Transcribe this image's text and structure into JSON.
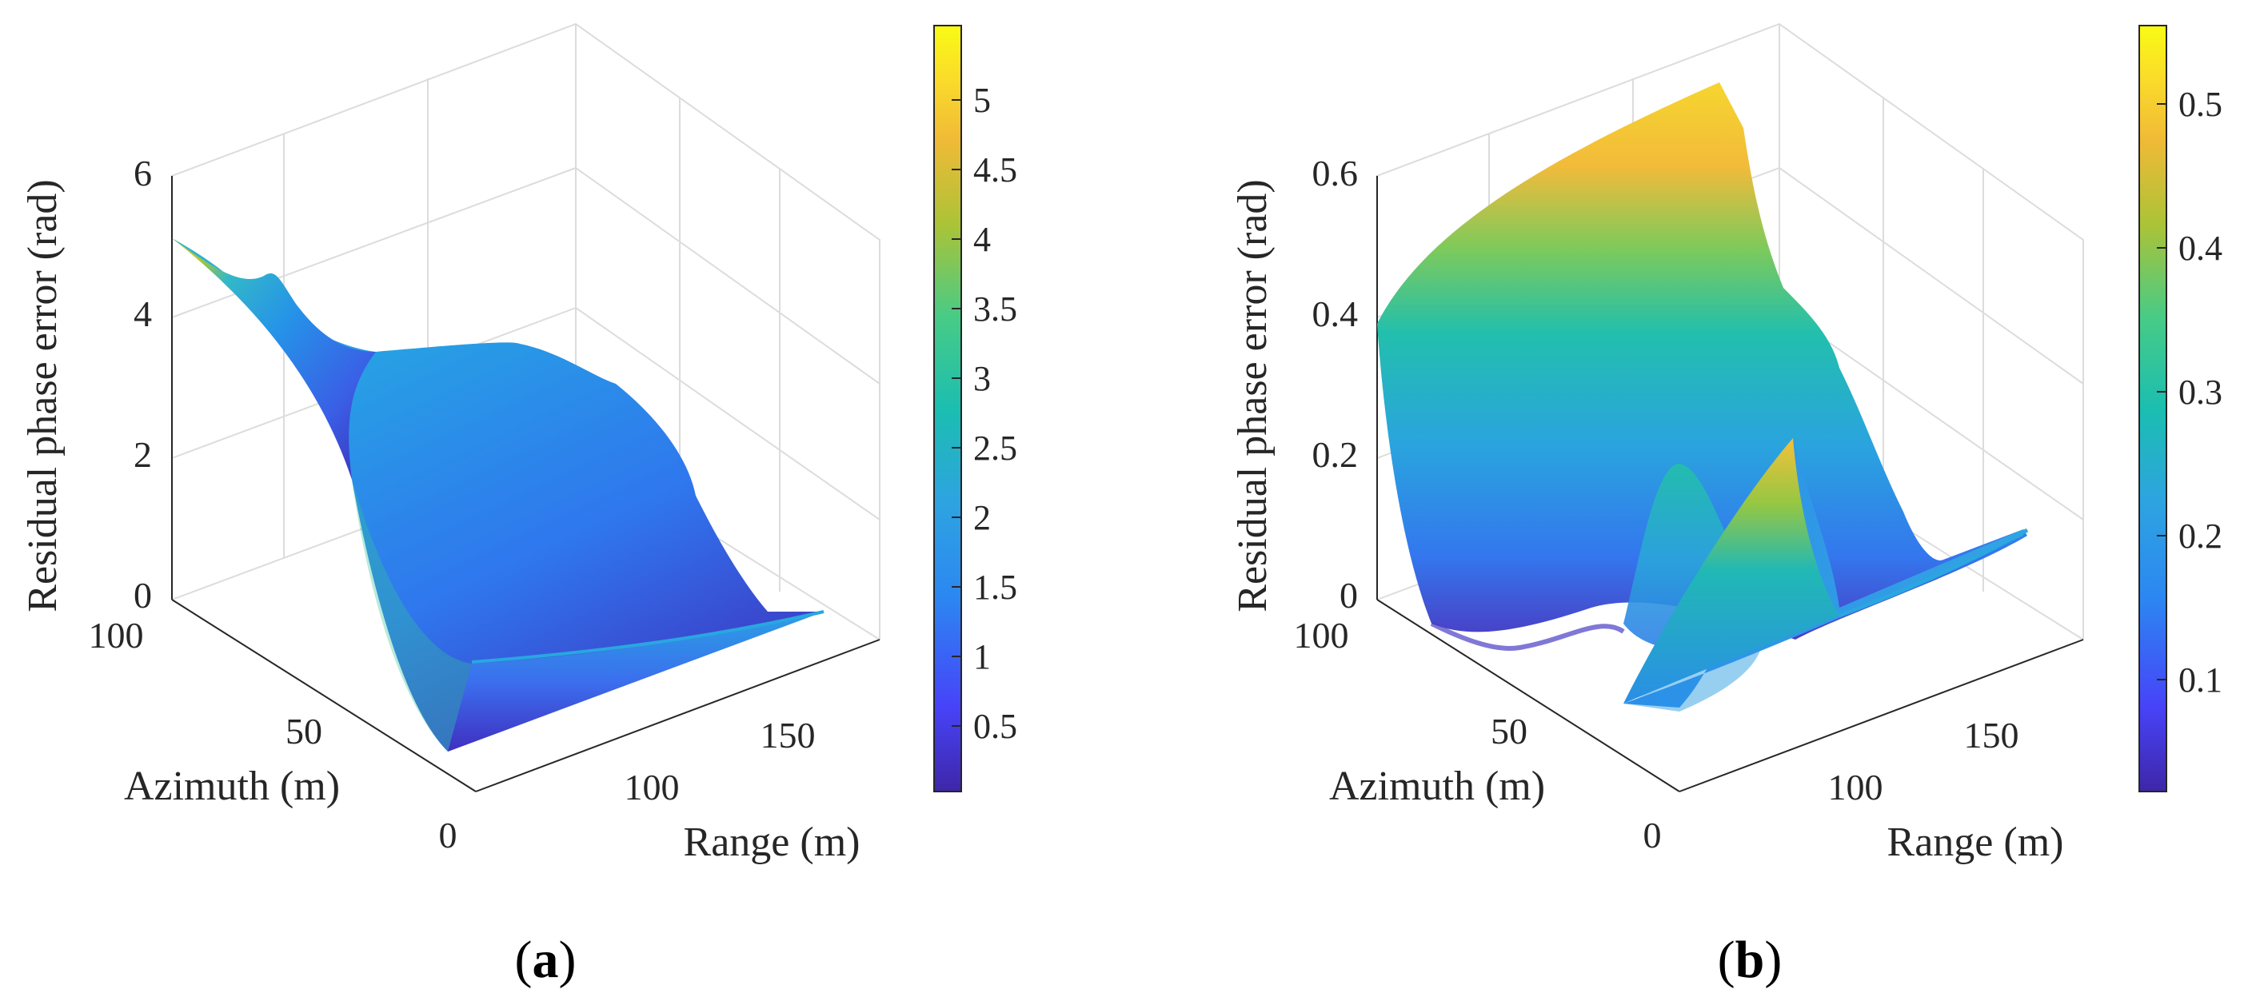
{
  "chart_data": [
    {
      "type": "surface",
      "panel": "(a)",
      "panel_letter": "a",
      "zlabel": "Residual phase error (rad)",
      "xlabel": "Range (m)",
      "ylabel": "Azimuth (m)",
      "z_ticks": [
        "0",
        "2",
        "4",
        "6"
      ],
      "y_ticks": [
        "0",
        "50",
        "100"
      ],
      "x_ticks": [
        "100",
        "150"
      ],
      "zlim": [
        0,
        6
      ],
      "colorbar": {
        "range": [
          0,
          5.5
        ],
        "ticks": [
          "0.5",
          "1",
          "1.5",
          "2",
          "2.5",
          "3",
          "3.5",
          "4",
          "4.5",
          "5"
        ]
      },
      "ridges": [
        {
          "azimuth": 0,
          "values": [
            0.2,
            0.3,
            0.35,
            0.4,
            0.35,
            0.3
          ]
        },
        {
          "azimuth": 50,
          "values": [
            1.8,
            1.9,
            1.7,
            1.2,
            0.6,
            0.3
          ]
        },
        {
          "azimuth": 100,
          "values": [
            5.0,
            3.6,
            3.4,
            3.2,
            2.9,
            1.0
          ]
        }
      ]
    },
    {
      "type": "surface",
      "panel": "(b)",
      "panel_letter": "b",
      "zlabel": "Residual phase error (rad)",
      "xlabel": "Range (m)",
      "ylabel": "Azimuth (m)",
      "z_ticks": [
        "0",
        "0.2",
        "0.4",
        "0.6"
      ],
      "y_ticks": [
        "0",
        "50",
        "100"
      ],
      "x_ticks": [
        "100",
        "150"
      ],
      "zlim": [
        0,
        0.6
      ],
      "colorbar": {
        "range": [
          0.02,
          0.55
        ],
        "ticks": [
          "0.1",
          "0.2",
          "0.3",
          "0.4",
          "0.5"
        ]
      },
      "ridges": [
        {
          "azimuth": 0,
          "values": [
            0.02,
            0.12,
            0.05,
            0.14,
            0.02,
            0.03
          ]
        },
        {
          "azimuth": 50,
          "values": [
            0.05,
            0.16,
            0.1,
            0.5,
            0.06,
            0.04
          ]
        },
        {
          "azimuth": 100,
          "values": [
            0.4,
            0.52,
            0.55,
            0.5,
            0.35,
            0.1
          ]
        }
      ]
    }
  ],
  "colormap": [
    "#3e26a8",
    "#4743f8",
    "#2c86f2",
    "#2da4e0",
    "#1bbeb0",
    "#48cb86",
    "#abc337",
    "#f0ba37",
    "#fadb2a",
    "#f9fb15"
  ]
}
